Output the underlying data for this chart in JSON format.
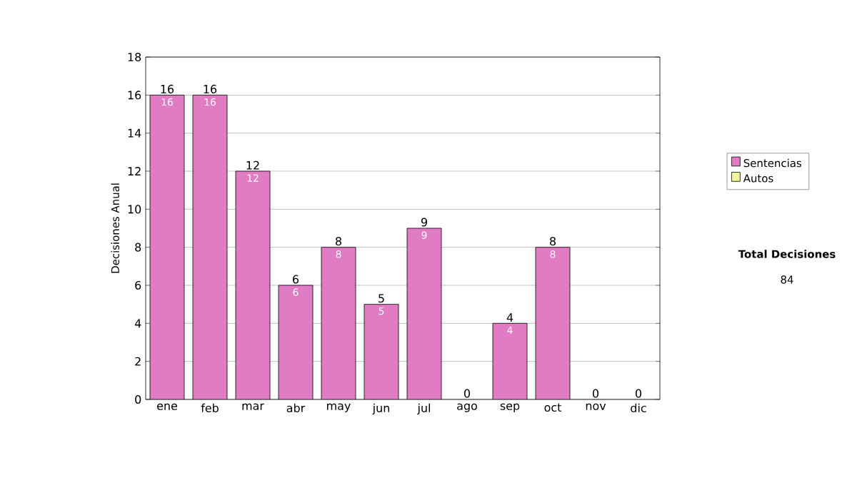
{
  "chart_data": {
    "type": "bar",
    "ylabel": "Decisiones Anual",
    "categories": [
      "ene",
      "feb",
      "mar",
      "abr",
      "may",
      "jun",
      "jul",
      "ago",
      "sep",
      "oct",
      "nov",
      "dic"
    ],
    "series": [
      {
        "name": "Sentencias",
        "color": "#e07cc4",
        "values": [
          16,
          16,
          12,
          6,
          8,
          5,
          9,
          0,
          4,
          8,
          0,
          0
        ],
        "value_labels": [
          "16",
          "16",
          "12",
          "6",
          "8",
          "5",
          "9",
          null,
          "4",
          "8",
          null,
          null
        ]
      },
      {
        "name": "Autos",
        "color": "#f4f49a",
        "values": [
          0,
          0,
          0,
          0,
          0,
          0,
          0,
          0,
          0,
          0,
          0,
          0
        ]
      }
    ],
    "stacked": true,
    "totals": [
      "16",
      "16",
      "12",
      "6",
      "8",
      "5",
      "9",
      "0",
      "4",
      "8",
      "0",
      "0"
    ],
    "ylim": [
      0,
      18
    ],
    "yticks": [
      0,
      2,
      4,
      6,
      8,
      10,
      12,
      14,
      16,
      18
    ],
    "grid": "y",
    "legend": "right",
    "annotations": [
      "Total Decisiones",
      "84"
    ]
  }
}
